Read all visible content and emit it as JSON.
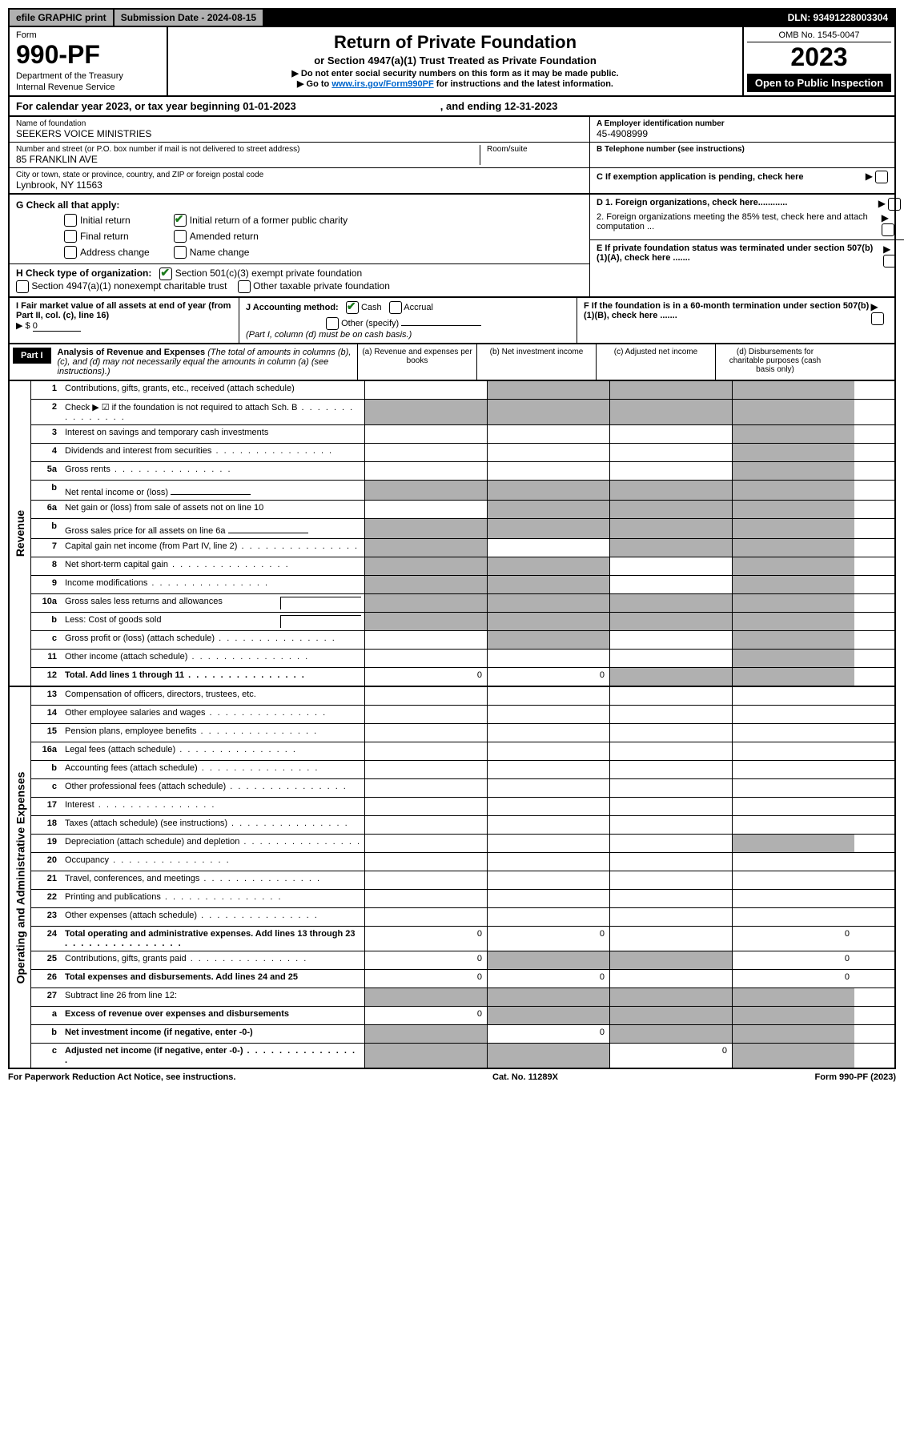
{
  "topbar": {
    "efile": "efile GRAPHIC print",
    "submission_label": "Submission Date - 2024-08-15",
    "dln": "DLN: 93491228003304"
  },
  "header": {
    "form_label": "Form",
    "form_number": "990-PF",
    "dept1": "Department of the Treasury",
    "dept2": "Internal Revenue Service",
    "title": "Return of Private Foundation",
    "subtitle": "or Section 4947(a)(1) Trust Treated as Private Foundation",
    "note1": "▶ Do not enter social security numbers on this form as it may be made public.",
    "note2_pre": "▶ Go to ",
    "note2_link": "www.irs.gov/Form990PF",
    "note2_post": " for instructions and the latest information.",
    "omb": "OMB No. 1545-0047",
    "year": "2023",
    "open": "Open to Public Inspection"
  },
  "calyear": {
    "pre": "For calendar year 2023, or tax year beginning 01-01-2023",
    "end": ", and ending 12-31-2023"
  },
  "foundation": {
    "name_label": "Name of foundation",
    "name": "SEEKERS VOICE MINISTRIES",
    "addr_label": "Number and street (or P.O. box number if mail is not delivered to street address)",
    "addr": "85 FRANKLIN AVE",
    "room_label": "Room/suite",
    "city_label": "City or town, state or province, country, and ZIP or foreign postal code",
    "city": "Lynbrook, NY  11563",
    "ein_label": "A Employer identification number",
    "ein": "45-4908999",
    "phone_label": "B Telephone number (see instructions)",
    "c_label": "C If exemption application is pending, check here"
  },
  "g": {
    "label": "G Check all that apply:",
    "opts": [
      "Initial return",
      "Initial return of a former public charity",
      "Final return",
      "Amended return",
      "Address change",
      "Name change"
    ]
  },
  "h": {
    "label": "H Check type of organization:",
    "opt1": "Section 501(c)(3) exempt private foundation",
    "opt2": "Section 4947(a)(1) nonexempt charitable trust",
    "opt3": "Other taxable private foundation"
  },
  "i": {
    "label": "I Fair market value of all assets at end of year (from Part II, col. (c), line 16)",
    "arrow": "▶ $",
    "value": "0"
  },
  "j": {
    "label": "J Accounting method:",
    "cash": "Cash",
    "accrual": "Accrual",
    "other": "Other (specify)",
    "note": "(Part I, column (d) must be on cash basis.)"
  },
  "d": {
    "d1": "D 1. Foreign organizations, check here............",
    "d2": "2. Foreign organizations meeting the 85% test, check here and attach computation ..."
  },
  "e": {
    "text": "E  If private foundation status was terminated under section 507(b)(1)(A), check here ......."
  },
  "f": {
    "text": "F  If the foundation is in a 60-month termination under section 507(b)(1)(B), check here ......."
  },
  "part1": {
    "badge": "Part I",
    "title": "Analysis of Revenue and Expenses",
    "note": "(The total of amounts in columns (b), (c), and (d) may not necessarily equal the amounts in column (a) (see instructions).)",
    "col_a": "(a)   Revenue and expenses per books",
    "col_b": "(b)   Net investment income",
    "col_c": "(c)   Adjusted net income",
    "col_d": "(d)  Disbursements for charitable purposes (cash basis only)"
  },
  "revenue": {
    "side": "Revenue",
    "rows": [
      {
        "n": "1",
        "l": "Contributions, gifts, grants, etc., received (attach schedule)",
        "a": "",
        "b": "s",
        "c": "s",
        "d": "s"
      },
      {
        "n": "2",
        "l": "Check ▶ ☑ if the foundation is not required to attach Sch. B",
        "dots": true,
        "a": "s",
        "b": "s",
        "c": "s",
        "d": "s"
      },
      {
        "n": "3",
        "l": "Interest on savings and temporary cash investments",
        "a": "",
        "b": "",
        "c": "",
        "d": "s"
      },
      {
        "n": "4",
        "l": "Dividends and interest from securities",
        "dots": true,
        "a": "",
        "b": "",
        "c": "",
        "d": "s"
      },
      {
        "n": "5a",
        "l": "Gross rents",
        "dots": true,
        "a": "",
        "b": "",
        "c": "",
        "d": "s"
      },
      {
        "n": "b",
        "l": "Net rental income or (loss)",
        "inline": true,
        "a": "s",
        "b": "s",
        "c": "s",
        "d": "s"
      },
      {
        "n": "6a",
        "l": "Net gain or (loss) from sale of assets not on line 10",
        "a": "",
        "b": "s",
        "c": "s",
        "d": "s"
      },
      {
        "n": "b",
        "l": "Gross sales price for all assets on line 6a",
        "inline": true,
        "a": "s",
        "b": "s",
        "c": "s",
        "d": "s"
      },
      {
        "n": "7",
        "l": "Capital gain net income (from Part IV, line 2)",
        "dots": true,
        "a": "s",
        "b": "",
        "c": "s",
        "d": "s"
      },
      {
        "n": "8",
        "l": "Net short-term capital gain",
        "dots": true,
        "a": "s",
        "b": "s",
        "c": "",
        "d": "s"
      },
      {
        "n": "9",
        "l": "Income modifications",
        "dots": true,
        "a": "s",
        "b": "s",
        "c": "",
        "d": "s"
      },
      {
        "n": "10a",
        "l": "Gross sales less returns and allowances",
        "split": true,
        "a": "s",
        "b": "s",
        "c": "s",
        "d": "s"
      },
      {
        "n": "b",
        "l": "Less: Cost of goods sold",
        "dots": true,
        "split": true,
        "a": "s",
        "b": "s",
        "c": "s",
        "d": "s"
      },
      {
        "n": "c",
        "l": "Gross profit or (loss) (attach schedule)",
        "dots": true,
        "a": "",
        "b": "s",
        "c": "",
        "d": "s"
      },
      {
        "n": "11",
        "l": "Other income (attach schedule)",
        "dots": true,
        "a": "",
        "b": "",
        "c": "",
        "d": "s"
      },
      {
        "n": "12",
        "l": "Total. Add lines 1 through 11",
        "bold": true,
        "dots": true,
        "a": "0",
        "b": "0",
        "c": "s",
        "d": "s"
      }
    ]
  },
  "expenses": {
    "side": "Operating and Administrative Expenses",
    "rows": [
      {
        "n": "13",
        "l": "Compensation of officers, directors, trustees, etc.",
        "a": "",
        "b": "",
        "c": "",
        "d": ""
      },
      {
        "n": "14",
        "l": "Other employee salaries and wages",
        "dots": true,
        "a": "",
        "b": "",
        "c": "",
        "d": ""
      },
      {
        "n": "15",
        "l": "Pension plans, employee benefits",
        "dots": true,
        "a": "",
        "b": "",
        "c": "",
        "d": ""
      },
      {
        "n": "16a",
        "l": "Legal fees (attach schedule)",
        "dots": true,
        "a": "",
        "b": "",
        "c": "",
        "d": ""
      },
      {
        "n": "b",
        "l": "Accounting fees (attach schedule)",
        "dots": true,
        "a": "",
        "b": "",
        "c": "",
        "d": ""
      },
      {
        "n": "c",
        "l": "Other professional fees (attach schedule)",
        "dots": true,
        "a": "",
        "b": "",
        "c": "",
        "d": ""
      },
      {
        "n": "17",
        "l": "Interest",
        "dots": true,
        "a": "",
        "b": "",
        "c": "",
        "d": ""
      },
      {
        "n": "18",
        "l": "Taxes (attach schedule) (see instructions)",
        "dots": true,
        "a": "",
        "b": "",
        "c": "",
        "d": ""
      },
      {
        "n": "19",
        "l": "Depreciation (attach schedule) and depletion",
        "dots": true,
        "a": "",
        "b": "",
        "c": "",
        "d": "s"
      },
      {
        "n": "20",
        "l": "Occupancy",
        "dots": true,
        "a": "",
        "b": "",
        "c": "",
        "d": ""
      },
      {
        "n": "21",
        "l": "Travel, conferences, and meetings",
        "dots": true,
        "a": "",
        "b": "",
        "c": "",
        "d": ""
      },
      {
        "n": "22",
        "l": "Printing and publications",
        "dots": true,
        "a": "",
        "b": "",
        "c": "",
        "d": ""
      },
      {
        "n": "23",
        "l": "Other expenses (attach schedule)",
        "dots": true,
        "a": "",
        "b": "",
        "c": "",
        "d": ""
      },
      {
        "n": "24",
        "l": "Total operating and administrative expenses. Add lines 13 through 23",
        "bold": true,
        "dots": true,
        "a": "0",
        "b": "0",
        "c": "",
        "d": "0"
      },
      {
        "n": "25",
        "l": "Contributions, gifts, grants paid",
        "dots": true,
        "a": "0",
        "b": "s",
        "c": "s",
        "d": "0"
      },
      {
        "n": "26",
        "l": "Total expenses and disbursements. Add lines 24 and 25",
        "bold": true,
        "a": "0",
        "b": "0",
        "c": "",
        "d": "0"
      },
      {
        "n": "27",
        "l": "Subtract line 26 from line 12:",
        "a": "s",
        "b": "s",
        "c": "s",
        "d": "s"
      },
      {
        "n": "a",
        "l": "Excess of revenue over expenses and disbursements",
        "bold": true,
        "a": "0",
        "b": "s",
        "c": "s",
        "d": "s"
      },
      {
        "n": "b",
        "l": "Net investment income (if negative, enter -0-)",
        "bold": true,
        "a": "s",
        "b": "0",
        "c": "s",
        "d": "s"
      },
      {
        "n": "c",
        "l": "Adjusted net income (if negative, enter -0-)",
        "bold": true,
        "dots": true,
        "a": "s",
        "b": "s",
        "c": "0",
        "d": "s"
      }
    ]
  },
  "footer": {
    "left": "For Paperwork Reduction Act Notice, see instructions.",
    "mid": "Cat. No. 11289X",
    "right": "Form 990-PF (2023)"
  }
}
